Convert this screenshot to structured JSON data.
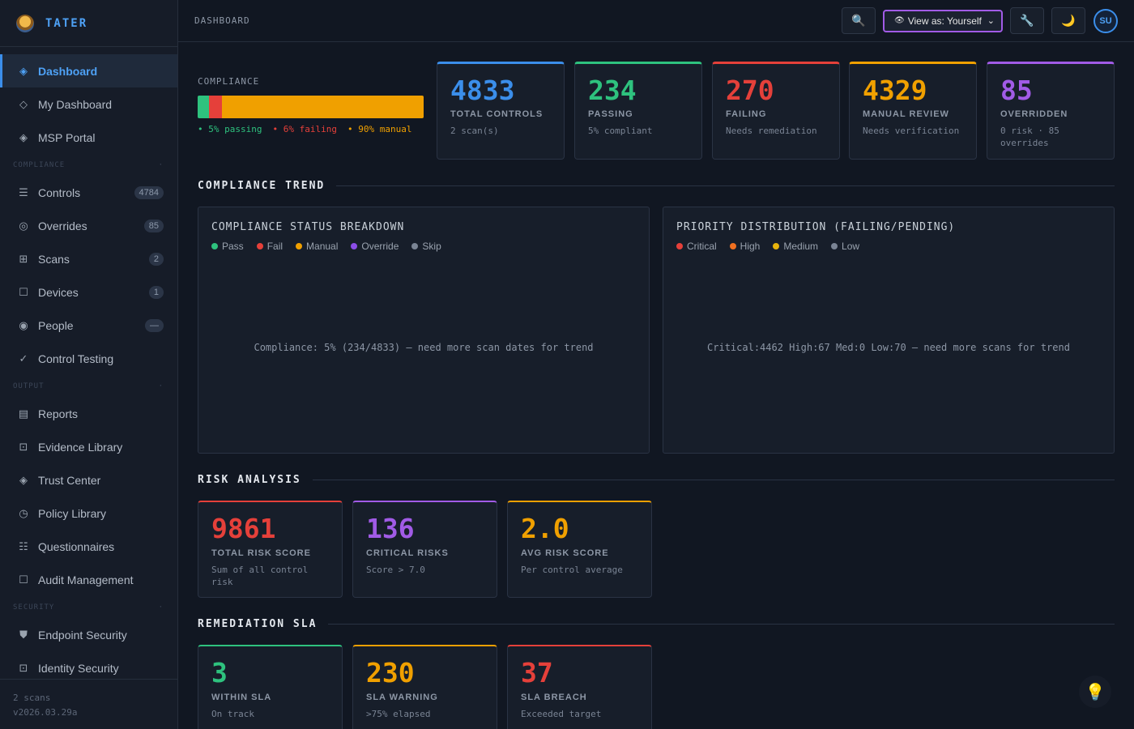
{
  "app": {
    "name": "TATER"
  },
  "sidebar": {
    "items_top": [
      {
        "label": "Dashboard",
        "icon": "diamond-icon",
        "glyph": "◈",
        "active": true
      },
      {
        "label": "My Dashboard",
        "icon": "diamond-outline-icon",
        "glyph": "◇"
      },
      {
        "label": "MSP Portal",
        "icon": "diamond-icon",
        "glyph": "◈"
      }
    ],
    "section_compliance": "COMPLIANCE",
    "items_compliance": [
      {
        "label": "Controls",
        "icon": "list-icon",
        "glyph": "☰",
        "badge": "4784"
      },
      {
        "label": "Overrides",
        "icon": "ring-icon",
        "glyph": "◎",
        "badge": "85"
      },
      {
        "label": "Scans",
        "icon": "grid-icon",
        "glyph": "⊞",
        "badge": "2"
      },
      {
        "label": "Devices",
        "icon": "square-icon",
        "glyph": "☐",
        "badge": "1"
      },
      {
        "label": "People",
        "icon": "target-icon",
        "glyph": "◉",
        "badge": "—"
      },
      {
        "label": "Control Testing",
        "icon": "check-icon",
        "glyph": "✓"
      }
    ],
    "section_output": "OUTPUT",
    "items_output": [
      {
        "label": "Reports",
        "icon": "document-icon",
        "glyph": "▤"
      },
      {
        "label": "Evidence Library",
        "icon": "evidence-icon",
        "glyph": "⊡"
      },
      {
        "label": "Trust Center",
        "icon": "diamond-icon",
        "glyph": "◈"
      },
      {
        "label": "Policy Library",
        "icon": "clock-icon",
        "glyph": "◷"
      },
      {
        "label": "Questionnaires",
        "icon": "checklist-icon",
        "glyph": "☷"
      },
      {
        "label": "Audit Management",
        "icon": "square-icon",
        "glyph": "☐"
      }
    ],
    "section_security": "SECURITY",
    "items_security": [
      {
        "label": "Endpoint Security",
        "icon": "shield-icon",
        "glyph": "⛊"
      },
      {
        "label": "Identity Security",
        "icon": "identity-icon",
        "glyph": "⊡"
      }
    ],
    "footer": {
      "scans": "2 scans",
      "version": "v2026.03.29a"
    }
  },
  "header": {
    "breadcrumb": "DASHBOARD",
    "search_icon": "🔍",
    "view_as": "View as: Yourself",
    "view_icon": "👁",
    "tools_icon": "🔧",
    "theme_icon": "🌙",
    "avatar": "SU"
  },
  "compliance": {
    "label": "COMPLIANCE",
    "passing_pct": 5,
    "failing_pct": 6,
    "manual_pct": 90,
    "legend_passing": "5% passing",
    "legend_failing": "6% failing",
    "legend_manual": "90% manual"
  },
  "stats": [
    {
      "value": "4833",
      "caption": "TOTAL CONTROLS",
      "sub": "2 scan(s)",
      "color": "#3b8eea"
    },
    {
      "value": "234",
      "caption": "PASSING",
      "sub": "5% compliant",
      "color": "#2ec27e"
    },
    {
      "value": "270",
      "caption": "FAILING",
      "sub": "Needs remediation",
      "color": "#e5403a"
    },
    {
      "value": "4329",
      "caption": "MANUAL REVIEW",
      "sub": "Needs verification",
      "color": "#f0a000"
    },
    {
      "value": "85",
      "caption": "OVERRIDDEN",
      "sub": "0 risk · 85 overrides",
      "color": "#a15be6"
    }
  ],
  "trend": {
    "title": "COMPLIANCE TREND",
    "status_panel": {
      "title": "COMPLIANCE STATUS BREAKDOWN",
      "legend": [
        {
          "label": "Pass",
          "color": "#2ec27e"
        },
        {
          "label": "Fail",
          "color": "#e5403a"
        },
        {
          "label": "Manual",
          "color": "#f0a000"
        },
        {
          "label": "Override",
          "color": "#8b4de8"
        },
        {
          "label": "Skip",
          "color": "#7a8494"
        }
      ],
      "message": "Compliance: 5% (234/4833) — need more scan dates for trend"
    },
    "priority_panel": {
      "title": "PRIORITY DISTRIBUTION (FAILING/PENDING)",
      "legend": [
        {
          "label": "Critical",
          "color": "#e5403a"
        },
        {
          "label": "High",
          "color": "#f07020"
        },
        {
          "label": "Medium",
          "color": "#e8b40c"
        },
        {
          "label": "Low",
          "color": "#7a8494"
        }
      ],
      "message": "Critical:4462 High:67 Med:0 Low:70 — need more scans for trend"
    }
  },
  "risk": {
    "title": "RISK ANALYSIS",
    "cards": [
      {
        "value": "9861",
        "caption": "TOTAL RISK SCORE",
        "sub": "Sum of all control risk",
        "color": "#e5403a"
      },
      {
        "value": "136",
        "caption": "CRITICAL RISKS",
        "sub": "Score > 7.0",
        "color": "#a15be6"
      },
      {
        "value": "2.0",
        "caption": "AVG RISK SCORE",
        "sub": "Per control average",
        "color": "#f0a000"
      }
    ]
  },
  "sla": {
    "title": "REMEDIATION SLA",
    "cards": [
      {
        "value": "3",
        "caption": "WITHIN SLA",
        "sub": "On track",
        "color": "#2ec27e"
      },
      {
        "value": "230",
        "caption": "SLA WARNING",
        "sub": ">75% elapsed",
        "color": "#f0a000"
      },
      {
        "value": "37",
        "caption": "SLA BREACH",
        "sub": "Exceeded target",
        "color": "#e5403a"
      }
    ]
  },
  "fab_icon": "💡"
}
